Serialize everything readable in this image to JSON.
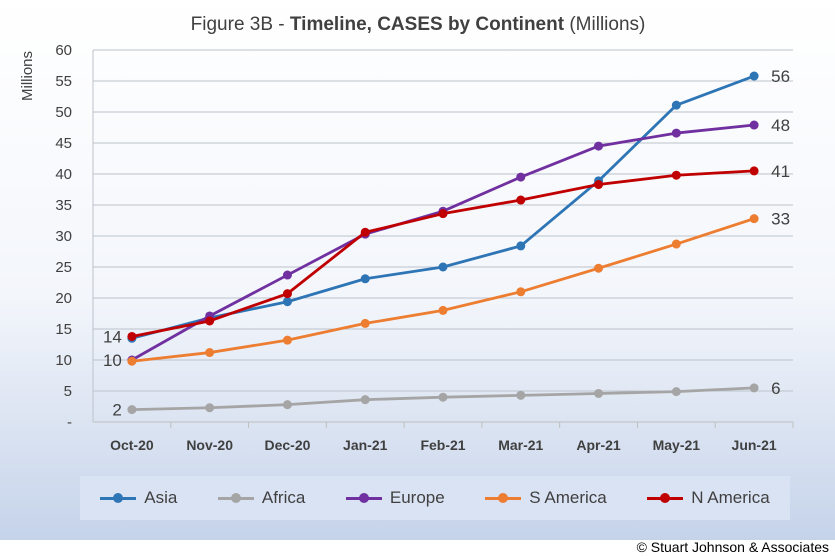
{
  "chart_data": {
    "type": "line",
    "title_prefix": "Figure 3B - ",
    "title_bold": "Timeline, CASES by Continent",
    "title_suffix": " (Millions)",
    "ylabel": "Millions",
    "ylim": [
      0,
      60
    ],
    "yticks": [
      "-",
      "5",
      "10",
      "15",
      "20",
      "25",
      "30",
      "35",
      "40",
      "45",
      "50",
      "55",
      "60"
    ],
    "ytick_values": [
      0,
      5,
      10,
      15,
      20,
      25,
      30,
      35,
      40,
      45,
      50,
      55,
      60
    ],
    "grid": true,
    "legend_position": "bottom",
    "categories": [
      "Oct-20",
      "Nov-20",
      "Dec-20",
      "Jan-21",
      "Feb-21",
      "Mar-21",
      "Apr-21",
      "May-21",
      "Jun-21"
    ],
    "series": [
      {
        "name": "Asia",
        "color": "#2e75b6",
        "values": [
          13.5,
          16.8,
          19.4,
          23.1,
          25.0,
          28.4,
          38.9,
          51.1,
          55.8
        ]
      },
      {
        "name": "Africa",
        "color": "#a5a5a5",
        "values": [
          2.0,
          2.3,
          2.8,
          3.6,
          4.0,
          4.3,
          4.6,
          4.9,
          5.5
        ]
      },
      {
        "name": "Europe",
        "color": "#7030a0",
        "values": [
          10.0,
          17.1,
          23.7,
          30.3,
          34.0,
          39.5,
          44.5,
          46.6,
          47.9
        ]
      },
      {
        "name": "S America",
        "color": "#ed7d31",
        "values": [
          9.8,
          11.2,
          13.2,
          15.9,
          18.0,
          21.0,
          24.8,
          28.7,
          32.8
        ]
      },
      {
        "name": "N America",
        "color": "#c00000",
        "values": [
          13.8,
          16.3,
          20.7,
          30.6,
          33.6,
          35.8,
          38.3,
          39.8,
          40.5
        ]
      }
    ],
    "data_labels": [
      {
        "text": "14",
        "x": "Oct-20",
        "y": 13.8,
        "side": "left"
      },
      {
        "text": "10",
        "x": "Oct-20",
        "y": 10.0,
        "side": "left"
      },
      {
        "text": "2",
        "x": "Oct-20",
        "y": 2.0,
        "side": "left"
      },
      {
        "text": "56",
        "x": "Jun-21",
        "y": 55.8,
        "side": "right"
      },
      {
        "text": "48",
        "x": "Jun-21",
        "y": 47.9,
        "side": "right"
      },
      {
        "text": "41",
        "x": "Jun-21",
        "y": 40.5,
        "side": "right"
      },
      {
        "text": "33",
        "x": "Jun-21",
        "y": 32.8,
        "side": "right"
      },
      {
        "text": "6",
        "x": "Jun-21",
        "y": 5.5,
        "side": "right"
      }
    ]
  },
  "copyright": "© Stuart Johnson & Associates"
}
